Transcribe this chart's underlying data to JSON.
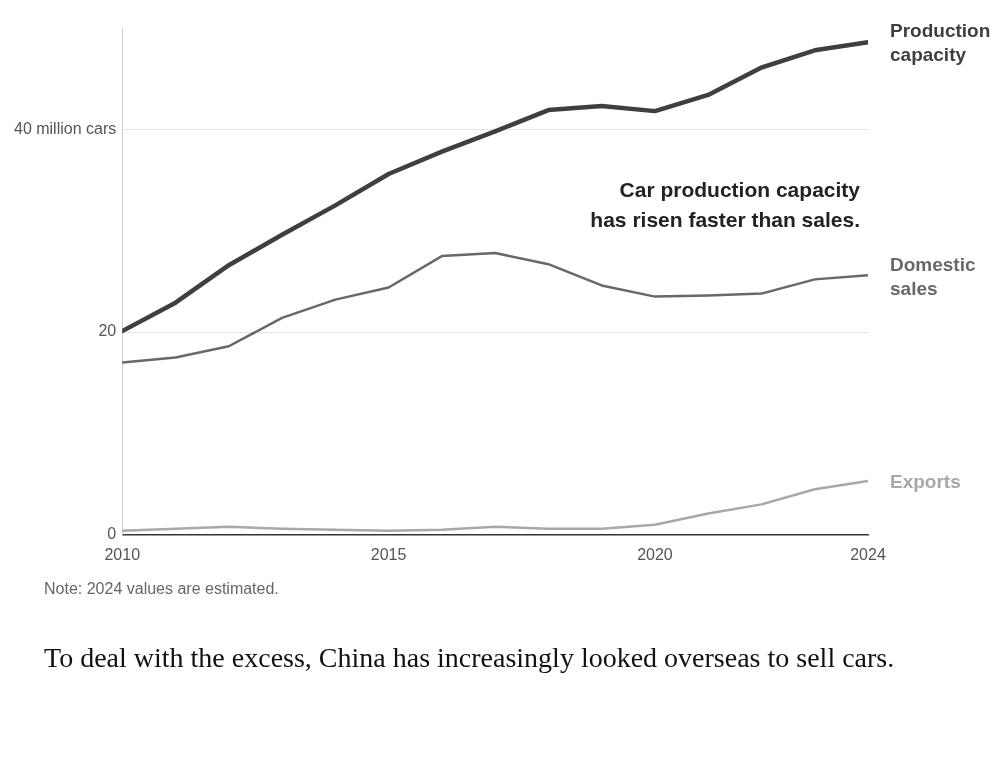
{
  "chart_data": {
    "type": "line",
    "x": [
      2010,
      2011,
      2012,
      2013,
      2014,
      2015,
      2016,
      2017,
      2018,
      2019,
      2020,
      2021,
      2022,
      2023,
      2024
    ],
    "series": [
      {
        "name": "Production capacity",
        "color": "#3f3f3f",
        "values": [
          20.1,
          22.9,
          26.6,
          29.6,
          32.5,
          35.6,
          37.8,
          39.8,
          41.9,
          42.3,
          41.8,
          43.4,
          46.1,
          47.8,
          48.6
        ]
      },
      {
        "name": "Domestic sales",
        "color": "#686868",
        "values": [
          17.0,
          17.5,
          18.6,
          21.4,
          23.2,
          24.4,
          27.5,
          27.8,
          26.7,
          24.6,
          23.5,
          23.6,
          23.8,
          25.2,
          25.6
        ]
      },
      {
        "name": "Exports",
        "color": "#a8a8a8",
        "values": [
          0.4,
          0.6,
          0.8,
          0.6,
          0.5,
          0.4,
          0.5,
          0.8,
          0.6,
          0.6,
          1.0,
          2.1,
          3.0,
          4.5,
          5.3
        ]
      }
    ],
    "xlim": [
      2010,
      2024
    ],
    "xticks": [
      2010,
      2015,
      2020,
      2024
    ],
    "ylim": [
      0,
      50
    ],
    "yticks": [
      0,
      20,
      {
        "value": 40,
        "label": "40 million cars"
      }
    ],
    "grid": "y",
    "legend": false,
    "marker": "none",
    "line_style": "solid",
    "annotations": [
      "Car production capacity has risen faster than sales.",
      "Note: 2024 values are estimated.",
      "To deal with the excess, China has increasingly looked overseas to sell cars."
    ]
  }
}
